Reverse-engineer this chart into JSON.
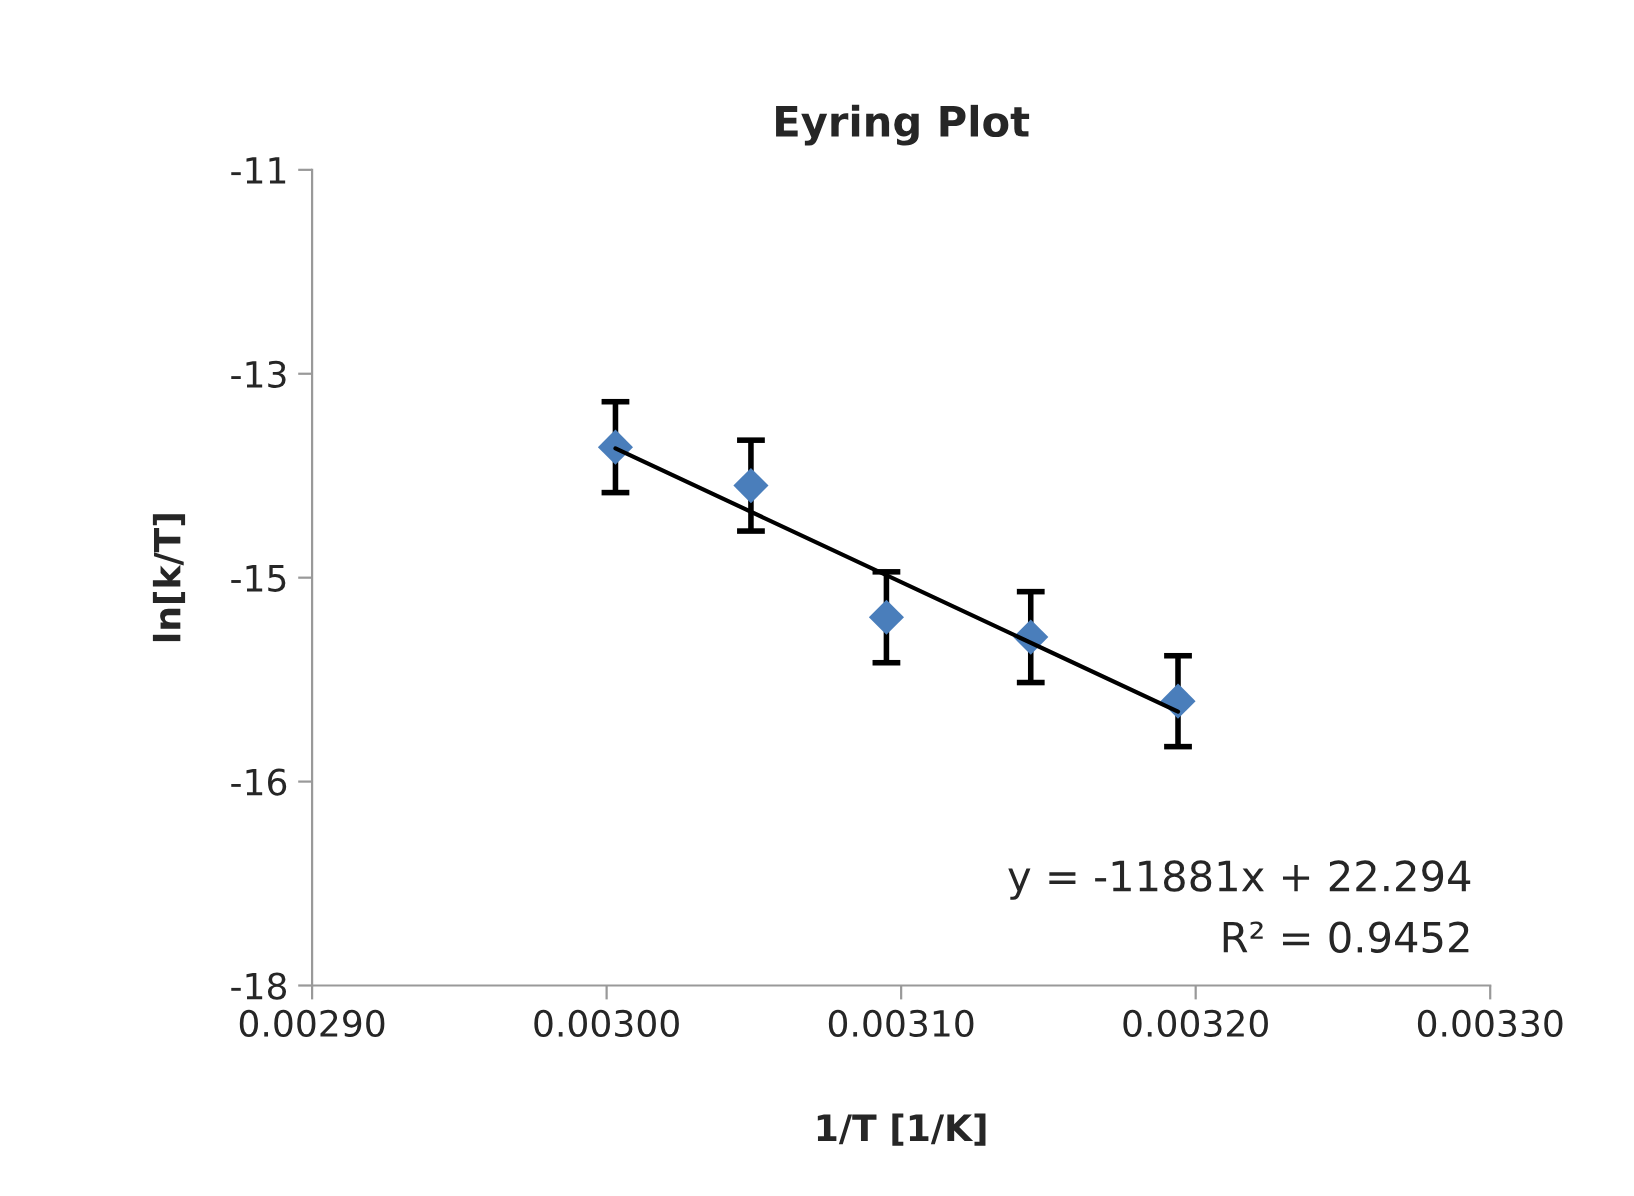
{
  "chart_data": {
    "type": "scatter",
    "title": "Eyring Plot",
    "xlabel": "1/T [1/K]",
    "ylabel": "ln[k/T]",
    "x": [
      0.003003,
      0.003049,
      0.003095,
      0.003144,
      0.003194
    ],
    "series": [
      {
        "color": "#4a7ebb",
        "marker": "diamond",
        "values": [
          -13.38,
          -13.71,
          -14.84,
          -15.01,
          -15.56
        ],
        "errors": [
          0.39,
          0.39,
          0.39,
          0.39,
          0.39
        ]
      },
      {
        "type": "line",
        "color": "#000000",
        "marker": "none",
        "x": [
          0.003003,
          0.003194
        ],
        "values": [
          -13.39,
          -15.65
        ]
      }
    ],
    "xlim": [
      0.0029,
      0.0033
    ],
    "xticks": [
      {
        "value": 0.0029,
        "label": "0.00290"
      },
      {
        "value": 0.003,
        "label": "0.00300"
      },
      {
        "value": 0.0031,
        "label": "0.00310"
      },
      {
        "value": 0.0032,
        "label": "0.00320"
      },
      {
        "value": 0.0033,
        "label": "0.00330"
      }
    ],
    "ylim": [
      -18,
      -11
    ],
    "yticks": [
      {
        "value": -11,
        "label": "-11"
      },
      {
        "value": -12.75,
        "label": "-13"
      },
      {
        "value": -14.5,
        "label": "-15"
      },
      {
        "value": -16.25,
        "label": "-16"
      },
      {
        "value": -18,
        "label": "-18"
      }
    ],
    "annotations": [
      "y = -11881x + 22.294",
      "R² = 0.9452"
    ],
    "grid": false,
    "legend": false
  }
}
